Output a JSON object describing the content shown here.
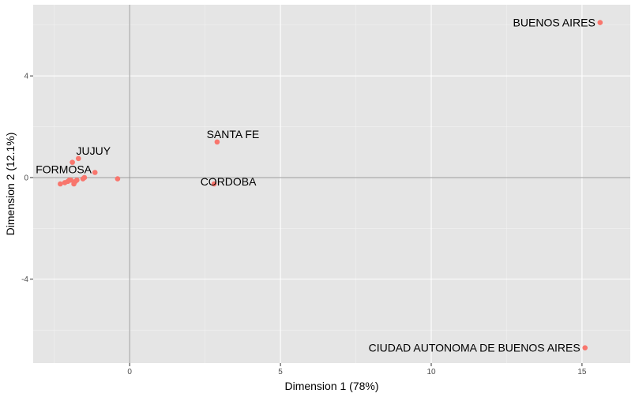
{
  "chart_data": {
    "type": "scatter",
    "title": "",
    "xlabel": "Dimension 1 (78%)",
    "ylabel": "Dimension 2 (12.1%)",
    "xlim": [
      -3.2,
      16.6
    ],
    "ylim": [
      -7.3,
      6.8
    ],
    "x_ticks": [
      0,
      5,
      10,
      15
    ],
    "y_ticks": [
      -4,
      0,
      4
    ],
    "x_minor_ticks": [
      -2.5,
      2.5,
      7.5,
      12.5
    ],
    "y_minor_ticks": [
      -6,
      -2,
      2,
      6
    ],
    "grid": true,
    "reference_lines": {
      "x": 0,
      "y": 0
    },
    "colors": {
      "panel": "#e5e5e5",
      "grid_major": "#ffffff",
      "grid_minor": "#f2f2f2",
      "reference": "#999999",
      "point": "#f8766d"
    },
    "points": [
      {
        "x": 15.6,
        "y": 6.1,
        "label": "BUENOS AIRES"
      },
      {
        "x": 15.1,
        "y": -6.7,
        "label": "CIUDAD AUTONOMA DE BUENOS AIRES"
      },
      {
        "x": 2.9,
        "y": 1.4,
        "label": "SANTA FE"
      },
      {
        "x": 2.8,
        "y": -0.25,
        "label": "CORDOBA"
      },
      {
        "x": -1.7,
        "y": 0.75,
        "label": "JUJUY"
      },
      {
        "x": -1.9,
        "y": 0.6,
        "label": "FORMOSA"
      },
      {
        "x": -1.15,
        "y": 0.2,
        "label": ""
      },
      {
        "x": -0.4,
        "y": -0.05,
        "label": ""
      },
      {
        "x": -1.5,
        "y": 0.0,
        "label": ""
      },
      {
        "x": -1.55,
        "y": -0.05,
        "label": ""
      },
      {
        "x": -2.3,
        "y": -0.25,
        "label": ""
      },
      {
        "x": -2.15,
        "y": -0.2,
        "label": ""
      },
      {
        "x": -2.05,
        "y": -0.15,
        "label": ""
      },
      {
        "x": -1.95,
        "y": -0.1,
        "label": ""
      },
      {
        "x": -1.85,
        "y": -0.25,
        "label": ""
      },
      {
        "x": -1.8,
        "y": -0.15,
        "label": ""
      },
      {
        "x": -1.75,
        "y": -0.1,
        "label": ""
      },
      {
        "x": -2.0,
        "y": -0.1,
        "label": ""
      }
    ]
  }
}
